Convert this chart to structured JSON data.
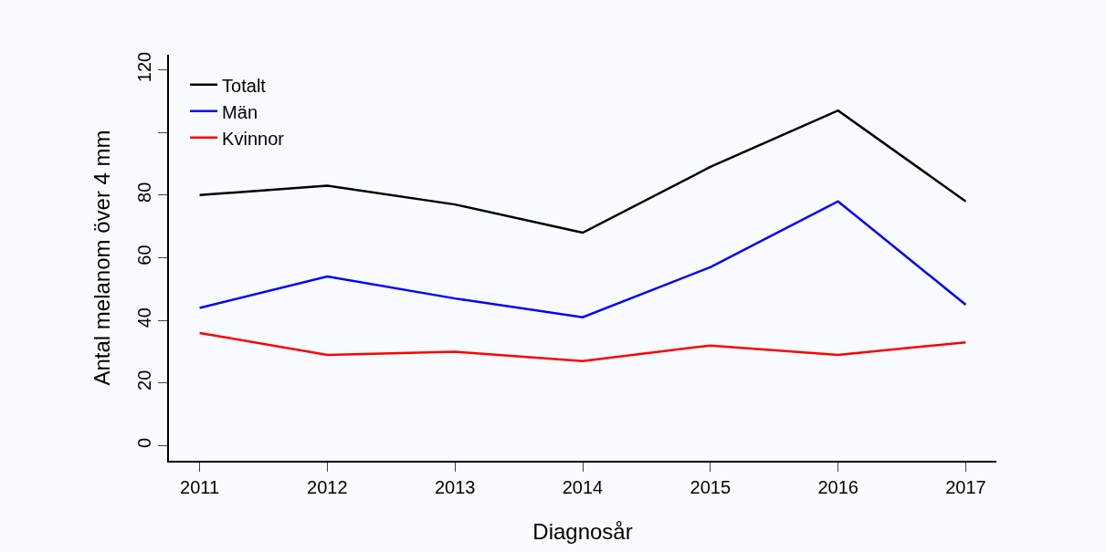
{
  "chart_data": {
    "type": "line",
    "xlabel": "Diagnosår",
    "ylabel": "Antal melanom över 4 mm",
    "x": [
      2011,
      2012,
      2013,
      2014,
      2015,
      2016,
      2017
    ],
    "series": [
      {
        "name": "Totalt",
        "color": "#000000",
        "values": [
          80,
          83,
          77,
          68,
          89,
          107,
          78
        ]
      },
      {
        "name": "Män",
        "color": "#0000ff",
        "values": [
          44,
          54,
          47,
          41,
          57,
          78,
          45
        ]
      },
      {
        "name": "Kvinnor",
        "color": "#ff0000",
        "values": [
          36,
          29,
          30,
          27,
          32,
          29,
          33
        ]
      }
    ],
    "xlim": [
      2010.76,
      2017.24
    ],
    "xticks": [
      2011,
      2012,
      2013,
      2014,
      2015,
      2016,
      2017
    ],
    "ylim": [
      -4.8,
      124.8
    ],
    "yticks": [
      0,
      20,
      40,
      60,
      80,
      {
        "value": 100,
        "label": null
      },
      120
    ],
    "grid": false,
    "legend": "top left",
    "marker": "none",
    "line_style": "solid"
  }
}
